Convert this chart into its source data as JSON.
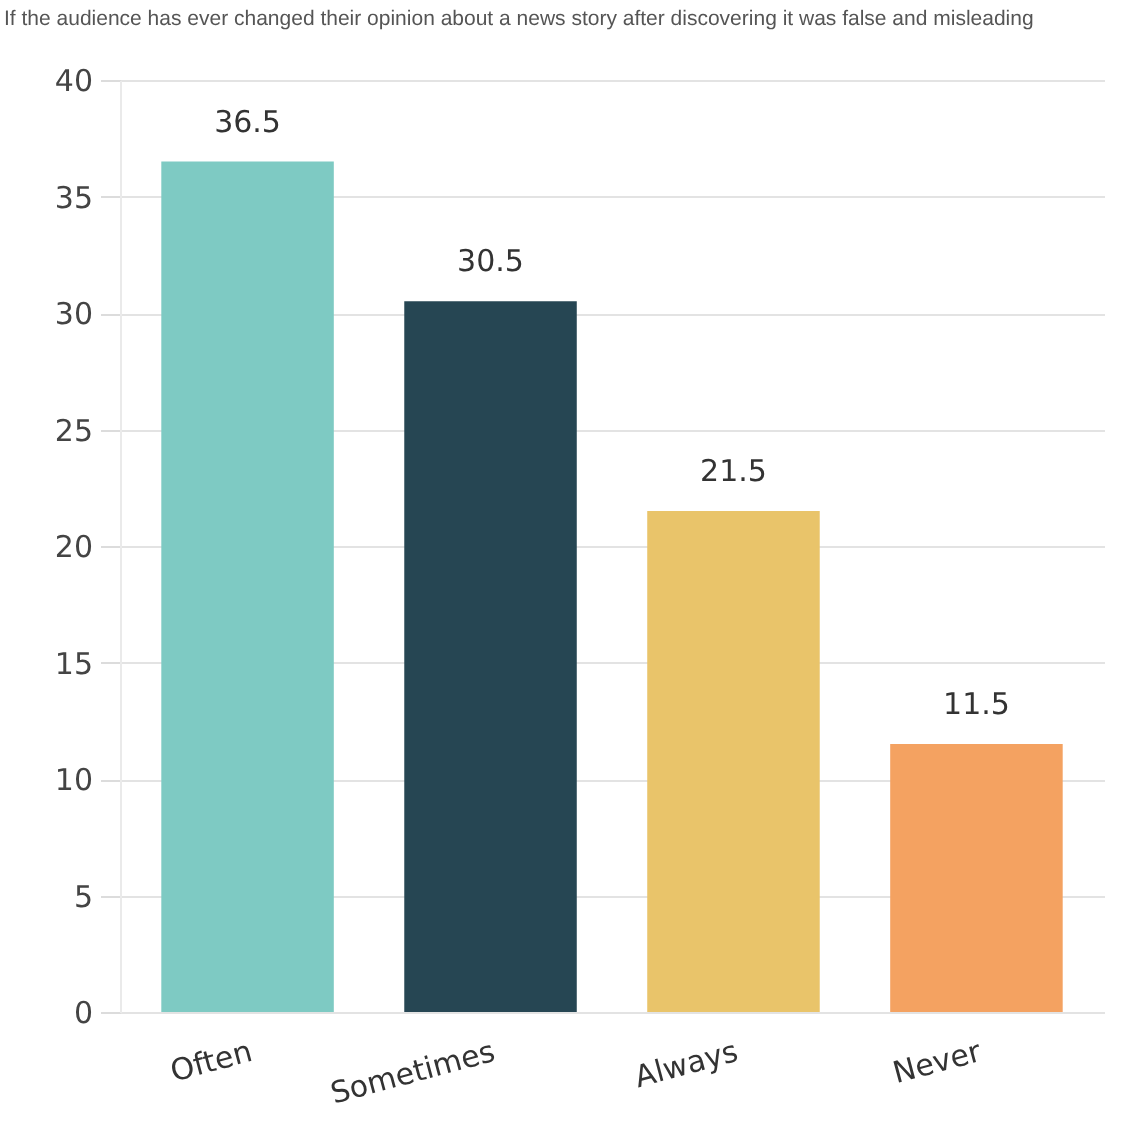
{
  "chart_data": {
    "type": "bar",
    "title": "If the audience has ever changed their opinion about a news story after discovering it was false and misleading",
    "categories": [
      "Often",
      "Sometimes",
      "Always",
      "Never"
    ],
    "values": [
      36.5,
      30.5,
      21.5,
      11.5
    ],
    "colors": [
      "#7ecac3",
      "#264653",
      "#e9c46a",
      "#f4a261"
    ],
    "ylim": [
      0,
      40
    ],
    "yticks": [
      0,
      5,
      10,
      15,
      20,
      25,
      30,
      35,
      40
    ],
    "grid": "y",
    "data_labels": true
  }
}
